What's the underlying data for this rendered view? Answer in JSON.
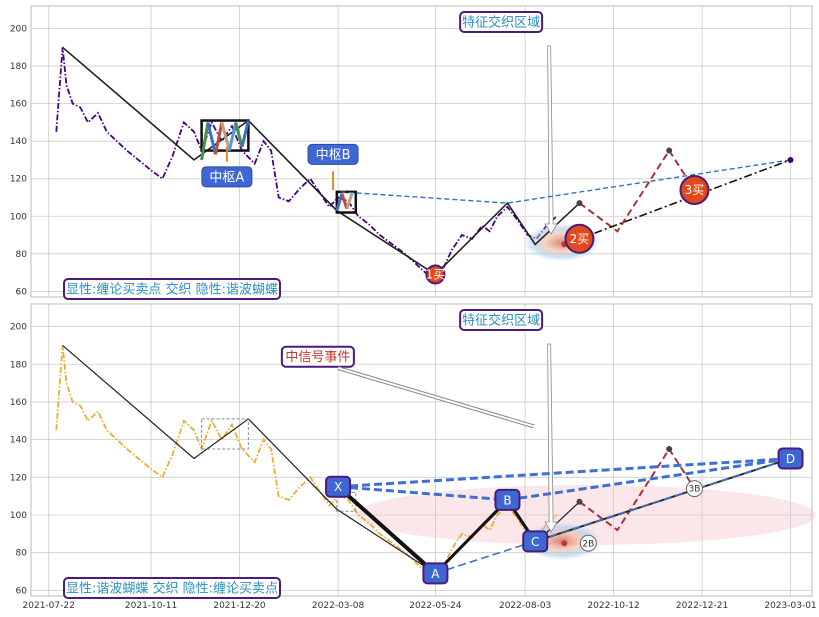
{
  "chart_data": [
    {
      "type": "line",
      "panel": "top",
      "ylim": [
        57,
        212
      ],
      "yticks": [
        60,
        80,
        100,
        120,
        140,
        160,
        180,
        200
      ],
      "legend_text": "显性:缠论买卖点 交织 隐性:谐波蝴蝶",
      "highlight_text": "特征交织区域",
      "pivot_labels": [
        "中枢A",
        "中枢B"
      ],
      "buy_points": [
        {
          "label": "1买",
          "x": "2022-05-24",
          "y": 69
        },
        {
          "label": "2买",
          "x": "2022-09-15",
          "y": 88
        },
        {
          "label": "3买",
          "x": "2022-12-15",
          "y": 114
        }
      ],
      "series": [
        {
          "color": "#4b0082",
          "style": "dashdot",
          "x": [
            "2021-07-28",
            "2021-08-02",
            "2021-08-05",
            "2021-08-10",
            "2021-08-16",
            "2021-08-22",
            "2021-08-30",
            "2021-09-06",
            "2021-09-14",
            "2021-09-22",
            "2021-10-01",
            "2021-10-10",
            "2021-10-20",
            "2021-10-28",
            "2021-11-06",
            "2021-11-14",
            "2021-11-20",
            "2021-11-28",
            "2021-12-06",
            "2021-12-14",
            "2021-12-22",
            "2022-01-01",
            "2022-01-08",
            "2022-01-14",
            "2022-01-20",
            "2022-01-28",
            "2022-02-06",
            "2022-02-14",
            "2022-02-22",
            "2022-03-01",
            "2022-03-08",
            "2022-03-16",
            "2022-03-24",
            "2022-04-01",
            "2022-04-10",
            "2022-04-20",
            "2022-04-30",
            "2022-05-08",
            "2022-05-16",
            "2022-05-24",
            "2022-05-30",
            "2022-06-06",
            "2022-06-14",
            "2022-06-22",
            "2022-06-30",
            "2022-07-06",
            "2022-07-12",
            "2022-07-20",
            "2022-07-28",
            "2022-08-05",
            "2022-08-12",
            "2022-08-20",
            "2022-08-28"
          ],
          "y": [
            145,
            190,
            170,
            160,
            158,
            150,
            155,
            145,
            140,
            135,
            130,
            125,
            120,
            132,
            150,
            145,
            135,
            150,
            140,
            148,
            135,
            128,
            140,
            135,
            110,
            108,
            115,
            120,
            112,
            105,
            110,
            108,
            100,
            96,
            90,
            85,
            80,
            75,
            70,
            69,
            72,
            82,
            90,
            88,
            95,
            92,
            100,
            105,
            98,
            90,
            88,
            95,
            100
          ]
        }
      ],
      "pivots": [
        {
          "name": "中枢A",
          "x0": "2021-11-20",
          "x1": "2021-12-27",
          "y0": 135,
          "y1": 151
        },
        {
          "name": "中枢B",
          "x0": "2022-03-07",
          "x1": "2022-03-22",
          "y0": 102,
          "y1": 113
        }
      ],
      "strokes": [
        {
          "x": [
            "2021-08-02",
            "2021-11-14",
            "2021-12-27",
            "2022-03-07",
            "2022-05-24",
            "2022-07-20",
            "2022-08-11",
            "2022-09-15"
          ],
          "y": [
            190,
            130,
            151,
            103,
            69,
            107,
            85,
            107
          ]
        }
      ],
      "dashed_forecast": {
        "x": [
          "2022-09-15",
          "2022-10-15",
          "2022-11-25",
          "2022-12-15"
        ],
        "y": [
          107,
          92,
          135,
          114
        ]
      },
      "blue_dashed": {
        "x": [
          "2022-03-10",
          "2022-07-20",
          "2023-03-01"
        ],
        "y": [
          113,
          107,
          130
        ]
      },
      "black_dashdot": {
        "x": [
          "2022-09-15",
          "2023-03-01"
        ],
        "y": [
          88,
          130
        ]
      }
    },
    {
      "type": "line",
      "panel": "bottom",
      "ylim": [
        57,
        212
      ],
      "yticks": [
        60,
        80,
        100,
        120,
        140,
        160,
        180,
        200
      ],
      "xticks": [
        "2021-07-22",
        "2021-10-11",
        "2021-12-20",
        "2022-03-08",
        "2022-05-24",
        "2022-08-03",
        "2022-10-12",
        "2022-12-21",
        "2023-03-01"
      ],
      "legend_text": "显性:谐波蝴蝶 交织 隐性:缠论买卖点",
      "highlight_text": "特征交织区域",
      "signal_text": "中信号事件",
      "harmonic_points": [
        {
          "label": "X",
          "x": "2022-03-08",
          "y": 115
        },
        {
          "label": "A",
          "x": "2022-05-24",
          "y": 69
        },
        {
          "label": "B",
          "x": "2022-07-20",
          "y": 108
        },
        {
          "label": "C",
          "x": "2022-08-11",
          "y": 86
        },
        {
          "label": "D",
          "x": "2023-03-01",
          "y": 130
        }
      ],
      "small_buy_labels": [
        {
          "label": "2B",
          "x": "2022-09-22",
          "y": 85
        },
        {
          "label": "3B",
          "x": "2022-12-15",
          "y": 114
        }
      ],
      "series": [
        {
          "color": "#e8b030",
          "style": "dashdot",
          "x": [
            "2021-07-28",
            "2021-08-02",
            "2021-08-05",
            "2021-08-10",
            "2021-08-16",
            "2021-08-22",
            "2021-08-30",
            "2021-09-06",
            "2021-09-14",
            "2021-09-22",
            "2021-10-01",
            "2021-10-10",
            "2021-10-20",
            "2021-10-28",
            "2021-11-06",
            "2021-11-14",
            "2021-11-20",
            "2021-11-28",
            "2021-12-06",
            "2021-12-14",
            "2021-12-22",
            "2022-01-01",
            "2022-01-08",
            "2022-01-14",
            "2022-01-20",
            "2022-01-28",
            "2022-02-06",
            "2022-02-14",
            "2022-02-22",
            "2022-03-01",
            "2022-03-08",
            "2022-03-16",
            "2022-03-24",
            "2022-04-01",
            "2022-04-10",
            "2022-04-20",
            "2022-04-30",
            "2022-05-08",
            "2022-05-16",
            "2022-05-24",
            "2022-05-30",
            "2022-06-06",
            "2022-06-14",
            "2022-06-22",
            "2022-06-30",
            "2022-07-06",
            "2022-07-12",
            "2022-07-20",
            "2022-07-28",
            "2022-08-05",
            "2022-08-12",
            "2022-08-20",
            "2022-08-28"
          ],
          "y": [
            145,
            190,
            170,
            160,
            158,
            150,
            155,
            145,
            140,
            135,
            130,
            125,
            120,
            132,
            150,
            145,
            135,
            150,
            140,
            148,
            135,
            128,
            140,
            135,
            110,
            108,
            115,
            120,
            112,
            105,
            110,
            108,
            100,
            96,
            90,
            85,
            80,
            75,
            70,
            69,
            72,
            82,
            90,
            88,
            95,
            92,
            100,
            105,
            98,
            90,
            88,
            95,
            100
          ]
        }
      ],
      "strokes": [
        {
          "x": [
            "2021-08-02",
            "2021-11-14",
            "2021-12-27",
            "2022-03-07",
            "2022-05-24",
            "2022-07-20",
            "2022-08-11",
            "2022-09-15"
          ],
          "y": [
            190,
            130,
            151,
            103,
            69,
            107,
            85,
            107
          ]
        }
      ],
      "dashed_forecast": {
        "x": [
          "2022-09-15",
          "2022-10-15",
          "2022-11-25",
          "2022-12-15"
        ],
        "y": [
          107,
          92,
          135,
          114
        ]
      },
      "harmonic_dashed": [
        {
          "x": [
            "2022-03-08",
            "2023-03-01"
          ],
          "y": [
            115,
            130
          ]
        },
        {
          "x": [
            "2022-03-08",
            "2022-07-20"
          ],
          "y": [
            115,
            108
          ]
        },
        {
          "x": [
            "2022-07-20",
            "2023-03-01"
          ],
          "y": [
            108,
            130
          ]
        },
        {
          "x": [
            "2022-05-24",
            "2023-03-01"
          ],
          "y": [
            69,
            130
          ]
        }
      ]
    }
  ]
}
